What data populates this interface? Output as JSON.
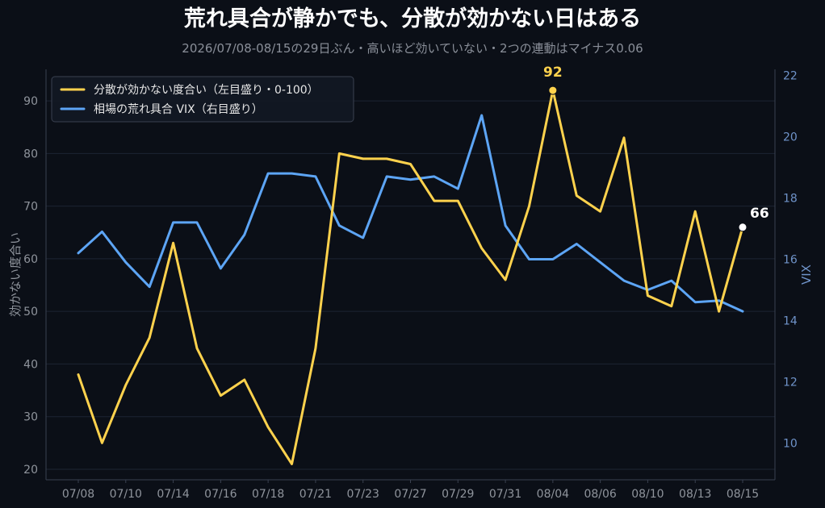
{
  "chart_data": {
    "type": "line",
    "title": "荒れ具合が静かでも、分散が効かない日はある",
    "subtitle": "2026/07/08-08/15の29日ぶん・高いほど効いていない・2つの連動はマイナス0.06",
    "ylabel_left": "効かない度合い",
    "ylabel_right": "VIX",
    "ylim_left": [
      18,
      96
    ],
    "ylim_right": [
      8.8,
      22.2
    ],
    "yticks_left": [
      20,
      30,
      40,
      50,
      60,
      70,
      80,
      90
    ],
    "yticks_right": [
      10,
      12,
      14,
      16,
      18,
      20,
      22
    ],
    "x": [
      "07/08",
      "07/09",
      "07/10",
      "07/13",
      "07/14",
      "07/15",
      "07/16",
      "07/17",
      "07/18",
      "07/20",
      "07/21",
      "07/22",
      "07/23",
      "07/24",
      "07/27",
      "07/28",
      "07/29",
      "07/30",
      "07/31",
      "08/03",
      "08/04",
      "08/05",
      "08/06",
      "08/07",
      "08/10",
      "08/11",
      "08/13",
      "08/14",
      "08/15"
    ],
    "xtick_labels": [
      "07/08",
      "07/10",
      "07/14",
      "07/16",
      "07/18",
      "07/21",
      "07/23",
      "07/27",
      "07/29",
      "07/31",
      "08/04",
      "08/06",
      "08/10",
      "08/13",
      "08/15"
    ],
    "series": [
      {
        "name": "分散が効かない度合い（左目盛り・0-100）",
        "axis": "left",
        "color": "#ffd24d",
        "values": [
          38,
          25,
          36,
          45,
          63,
          43,
          34,
          37,
          28,
          21,
          43,
          80,
          79,
          79,
          78,
          71,
          71,
          62,
          56,
          70,
          92,
          72,
          69,
          83,
          53,
          51,
          69,
          50,
          66
        ]
      },
      {
        "name": "相場の荒れ具合 VIX（右目盛り）",
        "axis": "right",
        "color": "#5da5f5",
        "values": [
          16.2,
          16.9,
          15.9,
          15.1,
          17.2,
          17.2,
          15.7,
          16.8,
          18.8,
          18.8,
          18.7,
          17.1,
          16.7,
          18.7,
          18.6,
          18.7,
          18.3,
          20.7,
          17.1,
          16.0,
          16.0,
          16.5,
          15.9,
          15.3,
          15.0,
          15.3,
          14.6,
          14.65,
          14.3
        ]
      }
    ],
    "annotations": [
      {
        "label": "92",
        "x": "08/04",
        "series": 0,
        "value": 92,
        "color": "#ffd24d"
      },
      {
        "label": "66",
        "x": "08/15",
        "series": 0,
        "value": 66,
        "color": "#ffffff"
      }
    ],
    "legend_position": "top-left",
    "grid": true
  }
}
